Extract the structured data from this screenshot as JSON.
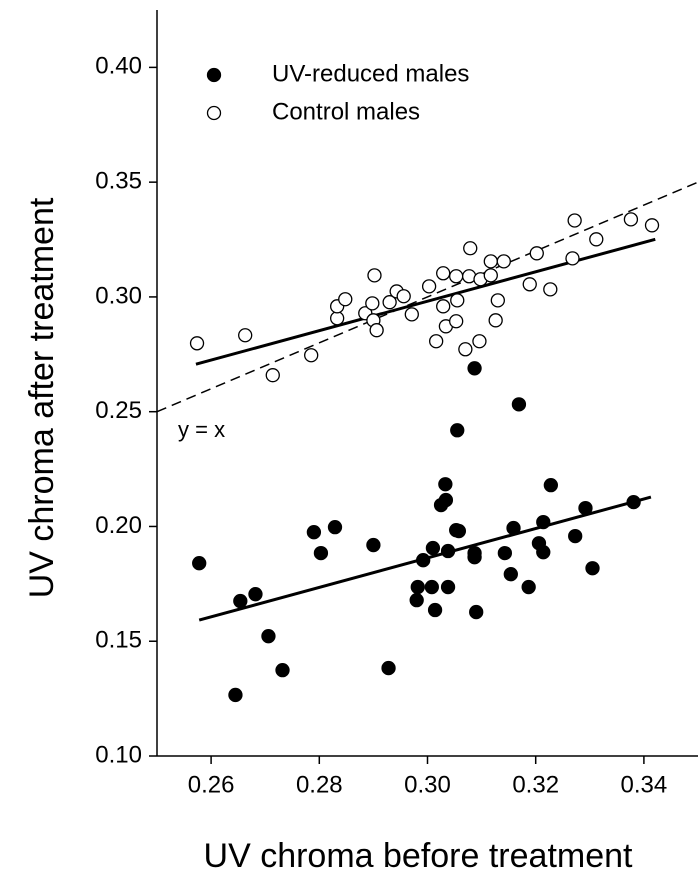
{
  "chart_data": {
    "type": "scatter",
    "x_label": "UV chroma before treatment",
    "y_label": "UV chroma after treatment",
    "xlim": [
      0.25,
      0.35
    ],
    "ylim": [
      0.1,
      0.425
    ],
    "xticks": [
      0.26,
      0.28,
      {
        "value": 0.3,
        "label": "0.30"
      },
      0.32,
      0.34
    ],
    "yticks": [
      {
        "value": 0.1,
        "label": "0.10"
      },
      0.15,
      {
        "value": 0.2,
        "label": "0.20"
      },
      0.25,
      {
        "value": 0.3,
        "label": "0.30"
      },
      0.35,
      {
        "value": 0.4,
        "label": "0.40"
      }
    ],
    "legend": "upper left",
    "series": [
      {
        "name": "UV-reduced males",
        "color": "#000000",
        "filled": true,
        "x": [
          0.2578,
          0.2654,
          0.2682,
          0.2645,
          0.2706,
          0.2732,
          0.279,
          0.2803,
          0.2829,
          0.29,
          0.2928,
          0.298,
          0.2982,
          0.2992,
          0.301,
          0.3008,
          0.3014,
          0.3025,
          0.3033,
          0.3034,
          0.3038,
          0.3038,
          0.3053,
          0.3055,
          0.3058,
          0.3087,
          0.3087,
          0.3087,
          0.309,
          0.3143,
          0.3154,
          0.3159,
          0.3169,
          0.3187,
          0.3206,
          0.3214,
          0.3214,
          0.3228,
          0.3273,
          0.3292,
          0.3305,
          0.3381
        ],
        "values": [
          0.184,
          0.1675,
          0.1705,
          0.1266,
          0.1522,
          0.1374,
          0.1975,
          0.1884,
          0.1997,
          0.1919,
          0.1383,
          0.1679,
          0.1736,
          0.1853,
          0.1906,
          0.1736,
          0.1636,
          0.2093,
          0.2184,
          0.2115,
          0.1736,
          0.1893,
          0.1984,
          0.2419,
          0.198,
          0.2689,
          0.1884,
          0.1866,
          0.1627,
          0.1884,
          0.1792,
          0.1993,
          0.2532,
          0.1736,
          0.1927,
          0.2019,
          0.1888,
          0.218,
          0.1958,
          0.208,
          0.1818,
          0.2106
        ],
        "fit": {
          "x": [
            0.2578,
            0.3413
          ],
          "y": [
            0.1592,
            0.2128
          ]
        }
      },
      {
        "name": "Control males",
        "color": "#000000",
        "filled": false,
        "x": [
          0.2574,
          0.2663,
          0.2714,
          0.2785,
          0.2833,
          0.2833,
          0.2848,
          0.2885,
          0.2898,
          0.29,
          0.2906,
          0.2902,
          0.293,
          0.2943,
          0.2956,
          0.2971,
          0.3003,
          0.3016,
          0.3029,
          0.3029,
          0.3034,
          0.3053,
          0.3055,
          0.3053,
          0.307,
          0.3077,
          0.3079,
          0.3096,
          0.3098,
          0.3117,
          0.3117,
          0.3126,
          0.313,
          0.3141,
          0.3189,
          0.3202,
          0.3227,
          0.3268,
          0.3272,
          0.3312,
          0.3376,
          0.3415
        ],
        "values": [
          0.2798,
          0.2833,
          0.2659,
          0.2746,
          0.2907,
          0.2959,
          0.299,
          0.2929,
          0.2972,
          0.2898,
          0.2855,
          0.3094,
          0.2977,
          0.3024,
          0.3003,
          0.2924,
          0.3046,
          0.2807,
          0.3103,
          0.2959,
          0.2872,
          0.2894,
          0.2985,
          0.309,
          0.2772,
          0.309,
          0.3212,
          0.2807,
          0.3077,
          0.3094,
          0.3155,
          0.2898,
          0.2985,
          0.3155,
          0.3055,
          0.319,
          0.3033,
          0.3168,
          0.3333,
          0.3251,
          0.3338,
          0.3312
        ],
        "fit": {
          "x": [
            0.2572,
            0.3421
          ],
          "y": [
            0.2707,
            0.3251
          ]
        }
      }
    ],
    "reference_line": {
      "label": "y = x",
      "x": [
        0.25,
        0.35
      ],
      "y": [
        0.25,
        0.35
      ]
    }
  }
}
